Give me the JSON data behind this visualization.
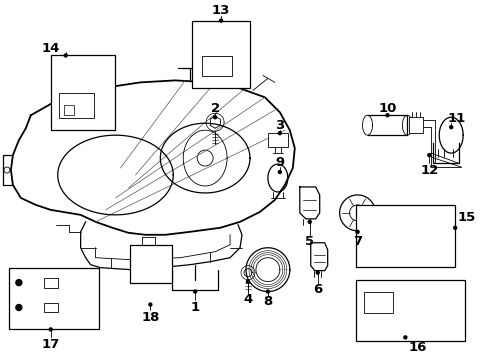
{
  "bg_color": "#ffffff",
  "line_color": "#000000",
  "fig_width": 4.89,
  "fig_height": 3.6,
  "dpi": 100,
  "label_fontsize": 9.5,
  "label_fontsize_sm": 8.5
}
